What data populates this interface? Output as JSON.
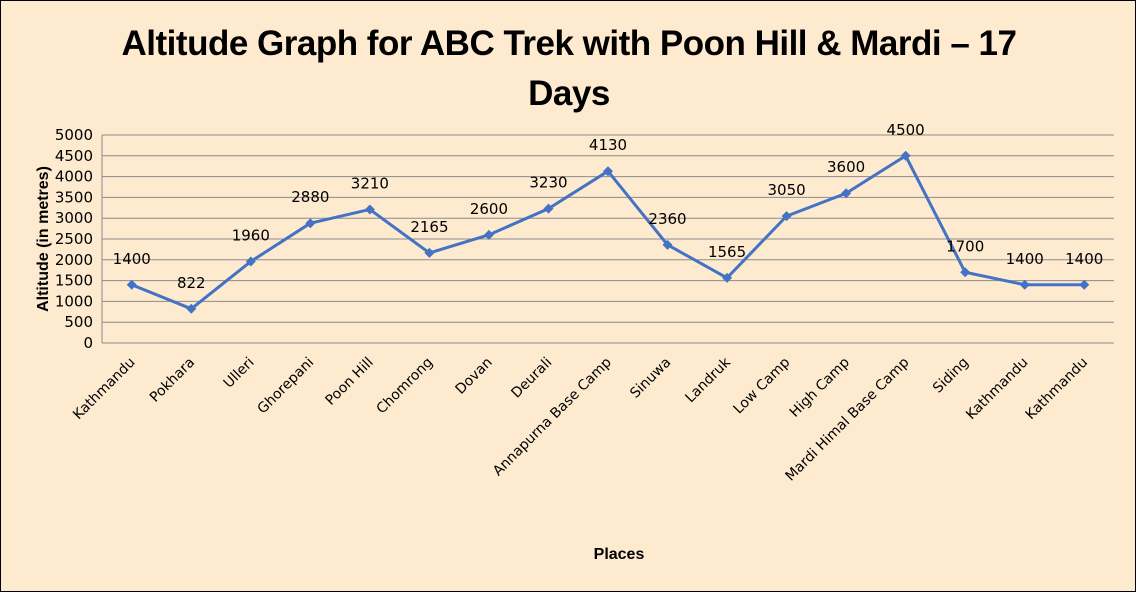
{
  "chart_data": {
    "type": "line",
    "title": "Altitude Graph for ABC Trek with Poon Hill & Mardi – 17 Days",
    "title_lines": [
      "Altitude Graph for ABC Trek with Poon Hill & Mardi – 17",
      "Days"
    ],
    "xlabel": "Places",
    "ylabel": "Altitude (in metres)",
    "ylim": [
      0,
      5000
    ],
    "yticks": [
      0,
      500,
      1000,
      1500,
      2000,
      2500,
      3000,
      3500,
      4000,
      4500,
      5000
    ],
    "grid": true,
    "legend": "none",
    "categories": [
      "Kathmandu",
      "Pokhara",
      "Ulleri",
      "Ghorepani",
      "Poon Hill",
      "Chomrong",
      "Dovan",
      "Deurali",
      "Annapurna Base Camp",
      "Sinuwa",
      "Landruk",
      "Low Camp",
      "High Camp",
      "Mardi Himal Base Camp",
      "Siding",
      "Kathmandu",
      "Kathmandu"
    ],
    "series": [
      {
        "name": "Altitude",
        "color": "#4472c4",
        "marker": "diamond",
        "values": [
          1400,
          822,
          1960,
          2880,
          3210,
          2165,
          2600,
          3230,
          4130,
          2360,
          1565,
          3050,
          3600,
          4500,
          1700,
          1400,
          1400
        ]
      }
    ],
    "data_labels": true
  },
  "colors": {
    "background": "#fdeacf",
    "line": "#4472c4",
    "grid": "#8c8c8c"
  }
}
